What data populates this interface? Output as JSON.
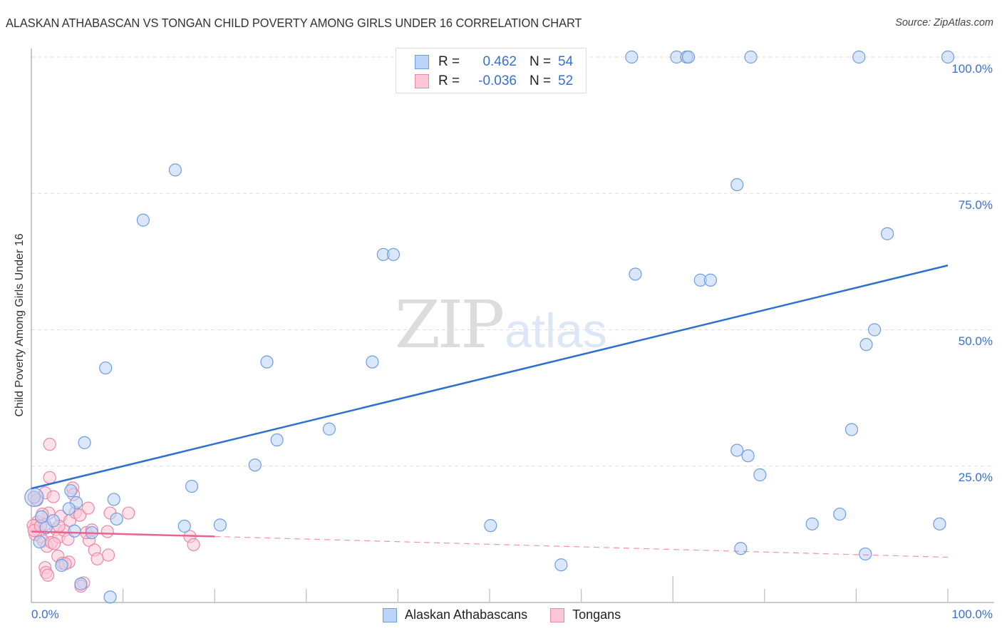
{
  "header": {
    "title": "ALASKAN ATHABASCAN VS TONGAN CHILD POVERTY AMONG GIRLS UNDER 16 CORRELATION CHART",
    "source": "Source: ZipAtlas.com"
  },
  "watermark": {
    "zip": "ZIP",
    "atlas": "atlas"
  },
  "legend": {
    "series": [
      {
        "name": "Alaskan Athabascans",
        "r_label": "R =",
        "r_value": "0.462",
        "n_label": "N =",
        "n_value": "54",
        "fill": "#bcd4f6",
        "stroke": "#6e9ee0"
      },
      {
        "name": "Tongans",
        "r_label": "R =",
        "r_value": "-0.036",
        "n_label": "N =",
        "n_value": "52",
        "fill": "#fbc6d6",
        "stroke": "#e889a8"
      }
    ]
  },
  "axes": {
    "y_label": "Child Poverty Among Girls Under 16",
    "y_ticks": [
      "100.0%",
      "75.0%",
      "50.0%",
      "25.0%"
    ],
    "x_ticks": [
      "0.0%",
      "100.0%"
    ]
  },
  "colors": {
    "blue_line": "#2c6fd1",
    "pink_line": "#e8648f",
    "tick_text": "#3a6fce",
    "grid": "#dddddd"
  },
  "chart_data": {
    "type": "scatter",
    "title": "ALASKAN ATHABASCAN VS TONGAN CHILD POVERTY AMONG GIRLS UNDER 16 CORRELATION CHART",
    "xlabel": "",
    "ylabel": "Child Poverty Among Girls Under 16",
    "xlim": [
      0,
      100
    ],
    "ylim": [
      0,
      100
    ],
    "x_tick_labels": [
      "0.0%",
      "100.0%"
    ],
    "y_tick_labels": [
      "25.0%",
      "50.0%",
      "75.0%",
      "100.0%"
    ],
    "grid": true,
    "legend_position": "top-center and bottom",
    "series": [
      {
        "name": "Alaskan Athabascans",
        "R": 0.462,
        "N": 54,
        "color": "#6e9ee0",
        "trendline": {
          "x": [
            0,
            100
          ],
          "y": [
            20.9,
            61.8
          ],
          "style": "solid"
        },
        "points": [
          [
            15.7,
            79.3
          ],
          [
            12.2,
            70.1
          ],
          [
            8.1,
            43.0
          ],
          [
            25.7,
            44.1
          ],
          [
            37.2,
            44.1
          ],
          [
            38.4,
            63.8
          ],
          [
            39.5,
            63.8
          ],
          [
            32.5,
            31.8
          ],
          [
            26.8,
            29.8
          ],
          [
            24.4,
            25.2
          ],
          [
            17.5,
            21.3
          ],
          [
            5.8,
            29.3
          ],
          [
            9.0,
            18.9
          ],
          [
            4.3,
            20.5
          ],
          [
            4.9,
            18.3
          ],
          [
            9.3,
            15.3
          ],
          [
            16.7,
            14.0
          ],
          [
            20.6,
            14.2
          ],
          [
            6.6,
            12.8
          ],
          [
            4.7,
            13.1
          ],
          [
            3.3,
            6.8
          ],
          [
            5.4,
            3.4
          ],
          [
            8.6,
            1.0
          ],
          [
            0.3,
            19.3
          ],
          [
            65.5,
            100
          ],
          [
            70.4,
            100
          ],
          [
            71.5,
            100
          ],
          [
            71.7,
            100
          ],
          [
            78.5,
            100
          ],
          [
            90.3,
            100
          ],
          [
            100,
            100
          ],
          [
            77.0,
            76.6
          ],
          [
            93.4,
            67.6
          ],
          [
            65.9,
            60.2
          ],
          [
            73.0,
            59.1
          ],
          [
            74.1,
            59.1
          ],
          [
            92.0,
            50.0
          ],
          [
            91.1,
            47.3
          ],
          [
            89.5,
            31.7
          ],
          [
            77.0,
            27.9
          ],
          [
            78.2,
            26.9
          ],
          [
            79.5,
            23.4
          ],
          [
            88.2,
            16.2
          ],
          [
            85.2,
            14.4
          ],
          [
            99.1,
            14.4
          ],
          [
            50.1,
            14.1
          ],
          [
            77.4,
            9.9
          ],
          [
            91.0,
            8.9
          ],
          [
            57.8,
            6.9
          ],
          [
            1.1,
            15.7
          ],
          [
            1.6,
            13.7
          ],
          [
            2.4,
            15.0
          ],
          [
            4.1,
            17.2
          ],
          [
            0.9,
            11.1
          ]
        ]
      },
      {
        "name": "Tongans",
        "R": -0.036,
        "N": 52,
        "color": "#e889a8",
        "trendline": {
          "x": [
            0,
            20,
            100
          ],
          "y": [
            13.0,
            12.1,
            8.3
          ],
          "style": "solid to x=20, dashed beyond"
        },
        "points": [
          [
            2.0,
            29.0
          ],
          [
            2.0,
            22.9
          ],
          [
            1.5,
            20.1
          ],
          [
            0.6,
            18.8
          ],
          [
            1.9,
            16.4
          ],
          [
            2.4,
            19.4
          ],
          [
            3.2,
            15.8
          ],
          [
            0.5,
            14.1
          ],
          [
            0.8,
            13.0
          ],
          [
            1.0,
            12.1
          ],
          [
            1.3,
            11.3
          ],
          [
            1.7,
            10.3
          ],
          [
            2.2,
            11.0
          ],
          [
            2.7,
            13.4
          ],
          [
            3.0,
            12.0
          ],
          [
            3.6,
            13.2
          ],
          [
            4.2,
            15.0
          ],
          [
            4.8,
            16.5
          ],
          [
            5.3,
            16.0
          ],
          [
            4.5,
            21.0
          ],
          [
            4.6,
            19.8
          ],
          [
            0.4,
            12.5
          ],
          [
            0.7,
            14.8
          ],
          [
            1.2,
            16.2
          ],
          [
            1.5,
            14.3
          ],
          [
            2.5,
            10.8
          ],
          [
            2.9,
            8.5
          ],
          [
            3.4,
            7.2
          ],
          [
            1.5,
            6.4
          ],
          [
            1.6,
            5.5
          ],
          [
            1.8,
            5.0
          ],
          [
            4.1,
            7.4
          ],
          [
            3.7,
            7.1
          ],
          [
            5.7,
            3.6
          ],
          [
            5.4,
            3.0
          ],
          [
            6.3,
            11.4
          ],
          [
            6.0,
            12.8
          ],
          [
            6.6,
            13.3
          ],
          [
            6.9,
            9.6
          ],
          [
            7.2,
            8.0
          ],
          [
            6.2,
            17.3
          ],
          [
            8.3,
            13.0
          ],
          [
            8.4,
            8.7
          ],
          [
            8.6,
            16.4
          ],
          [
            10.6,
            16.4
          ],
          [
            17.3,
            12.1
          ],
          [
            17.7,
            10.6
          ],
          [
            0.2,
            14.1
          ],
          [
            0.3,
            13.2
          ],
          [
            1.0,
            14.0
          ],
          [
            3.0,
            14.0
          ],
          [
            4.0,
            11.6
          ]
        ]
      }
    ]
  }
}
